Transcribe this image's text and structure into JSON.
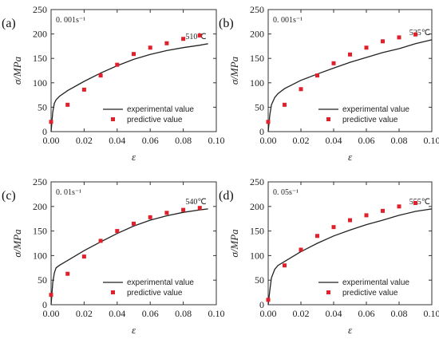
{
  "chart_data": [
    {
      "type": "line",
      "panel_label": "(a)",
      "strain_rate_label": "0. 001s⁻¹",
      "temperature_label": "510℃",
      "xlabel": "ε",
      "ylabel": "σ/MPa",
      "xlim": [
        0,
        0.1
      ],
      "ylim": [
        0,
        250
      ],
      "xticks": [
        "0.00",
        "0.02",
        "0.04",
        "0.06",
        "0.08",
        "0.10"
      ],
      "yticks": [
        "0",
        "50",
        "100",
        "150",
        "200",
        "250"
      ],
      "legend": [
        "experimental value",
        "predictive value"
      ],
      "series": [
        {
          "name": "experimental value",
          "style": "line",
          "x": [
            0,
            0.001,
            0.002,
            0.003,
            0.005,
            0.01,
            0.02,
            0.03,
            0.04,
            0.05,
            0.06,
            0.07,
            0.08,
            0.09,
            0.095
          ],
          "y": [
            0,
            40,
            58,
            65,
            72,
            84,
            103,
            120,
            135,
            148,
            158,
            166,
            172,
            177,
            180
          ]
        },
        {
          "name": "predictive value",
          "style": "markers",
          "x": [
            0,
            0.01,
            0.02,
            0.03,
            0.04,
            0.05,
            0.06,
            0.07,
            0.08,
            0.09
          ],
          "y": [
            20,
            55,
            86,
            115,
            137,
            159,
            172,
            181,
            190,
            197
          ]
        }
      ]
    },
    {
      "type": "line",
      "panel_label": "(b)",
      "strain_rate_label": "0. 001s⁻¹",
      "temperature_label": "525℃",
      "xlabel": "ε",
      "ylabel": "σ/MPa",
      "xlim": [
        0,
        0.1
      ],
      "ylim": [
        0,
        250
      ],
      "xticks": [
        "0.00",
        "0.02",
        "0.04",
        "0.06",
        "0.08",
        "0.10"
      ],
      "yticks": [
        "0",
        "50",
        "100",
        "150",
        "200",
        "250"
      ],
      "legend": [
        "experimental value",
        "predictive value"
      ],
      "series": [
        {
          "name": "experimental value",
          "style": "line",
          "x": [
            0,
            0.001,
            0.002,
            0.004,
            0.006,
            0.01,
            0.02,
            0.03,
            0.04,
            0.05,
            0.06,
            0.07,
            0.08,
            0.09,
            0.1
          ],
          "y": [
            0,
            35,
            55,
            70,
            78,
            88,
            105,
            118,
            130,
            142,
            152,
            162,
            170,
            180,
            188
          ]
        },
        {
          "name": "predictive value",
          "style": "markers",
          "x": [
            0,
            0.01,
            0.02,
            0.03,
            0.04,
            0.05,
            0.06,
            0.07,
            0.08,
            0.09
          ],
          "y": [
            20,
            55,
            87,
            115,
            140,
            158,
            172,
            185,
            193,
            199
          ]
        }
      ]
    },
    {
      "type": "line",
      "panel_label": "(c)",
      "strain_rate_label": "0. 01s⁻¹",
      "temperature_label": "540℃",
      "xlabel": "ε",
      "ylabel": "σ/MPa",
      "xlim": [
        0,
        0.1
      ],
      "ylim": [
        0,
        250
      ],
      "xticks": [
        "0.00",
        "0.02",
        "0.04",
        "0.06",
        "0.08",
        "0.10"
      ],
      "yticks": [
        "0",
        "50",
        "100",
        "150",
        "200",
        "250"
      ],
      "legend": [
        "experimental value",
        "predictive value"
      ],
      "series": [
        {
          "name": "experimental value",
          "style": "line",
          "x": [
            0,
            0.001,
            0.002,
            0.003,
            0.005,
            0.01,
            0.02,
            0.03,
            0.04,
            0.05,
            0.06,
            0.07,
            0.08,
            0.09,
            0.095
          ],
          "y": [
            0,
            45,
            65,
            75,
            80,
            90,
            110,
            128,
            145,
            160,
            172,
            181,
            188,
            193,
            195
          ]
        },
        {
          "name": "predictive value",
          "style": "markers",
          "x": [
            0,
            0.01,
            0.02,
            0.03,
            0.04,
            0.05,
            0.06,
            0.07,
            0.08,
            0.09
          ],
          "y": [
            20,
            63,
            98,
            130,
            150,
            165,
            178,
            187,
            193,
            197
          ]
        }
      ]
    },
    {
      "type": "line",
      "panel_label": "(d)",
      "strain_rate_label": "0. 05s⁻¹",
      "temperature_label": "555℃",
      "xlabel": "ε",
      "ylabel": "σ/MPa",
      "xlim": [
        0,
        0.1
      ],
      "ylim": [
        0,
        250
      ],
      "xticks": [
        "0.00",
        "0.02",
        "0.04",
        "0.06",
        "0.08",
        "0.10"
      ],
      "yticks": [
        "0",
        "50",
        "100",
        "150",
        "200",
        "250"
      ],
      "legend": [
        "experimental value",
        "predictive value"
      ],
      "series": [
        {
          "name": "experimental value",
          "style": "line",
          "x": [
            0,
            0.001,
            0.002,
            0.004,
            0.006,
            0.01,
            0.02,
            0.03,
            0.04,
            0.05,
            0.06,
            0.07,
            0.08,
            0.09,
            0.1
          ],
          "y": [
            0,
            30,
            55,
            72,
            80,
            88,
            108,
            125,
            140,
            152,
            163,
            172,
            182,
            190,
            195
          ]
        },
        {
          "name": "predictive value",
          "style": "markers",
          "x": [
            0,
            0.01,
            0.02,
            0.03,
            0.04,
            0.05,
            0.06,
            0.07,
            0.08,
            0.09
          ],
          "y": [
            10,
            80,
            112,
            140,
            158,
            172,
            182,
            191,
            200,
            207
          ]
        }
      ]
    }
  ]
}
